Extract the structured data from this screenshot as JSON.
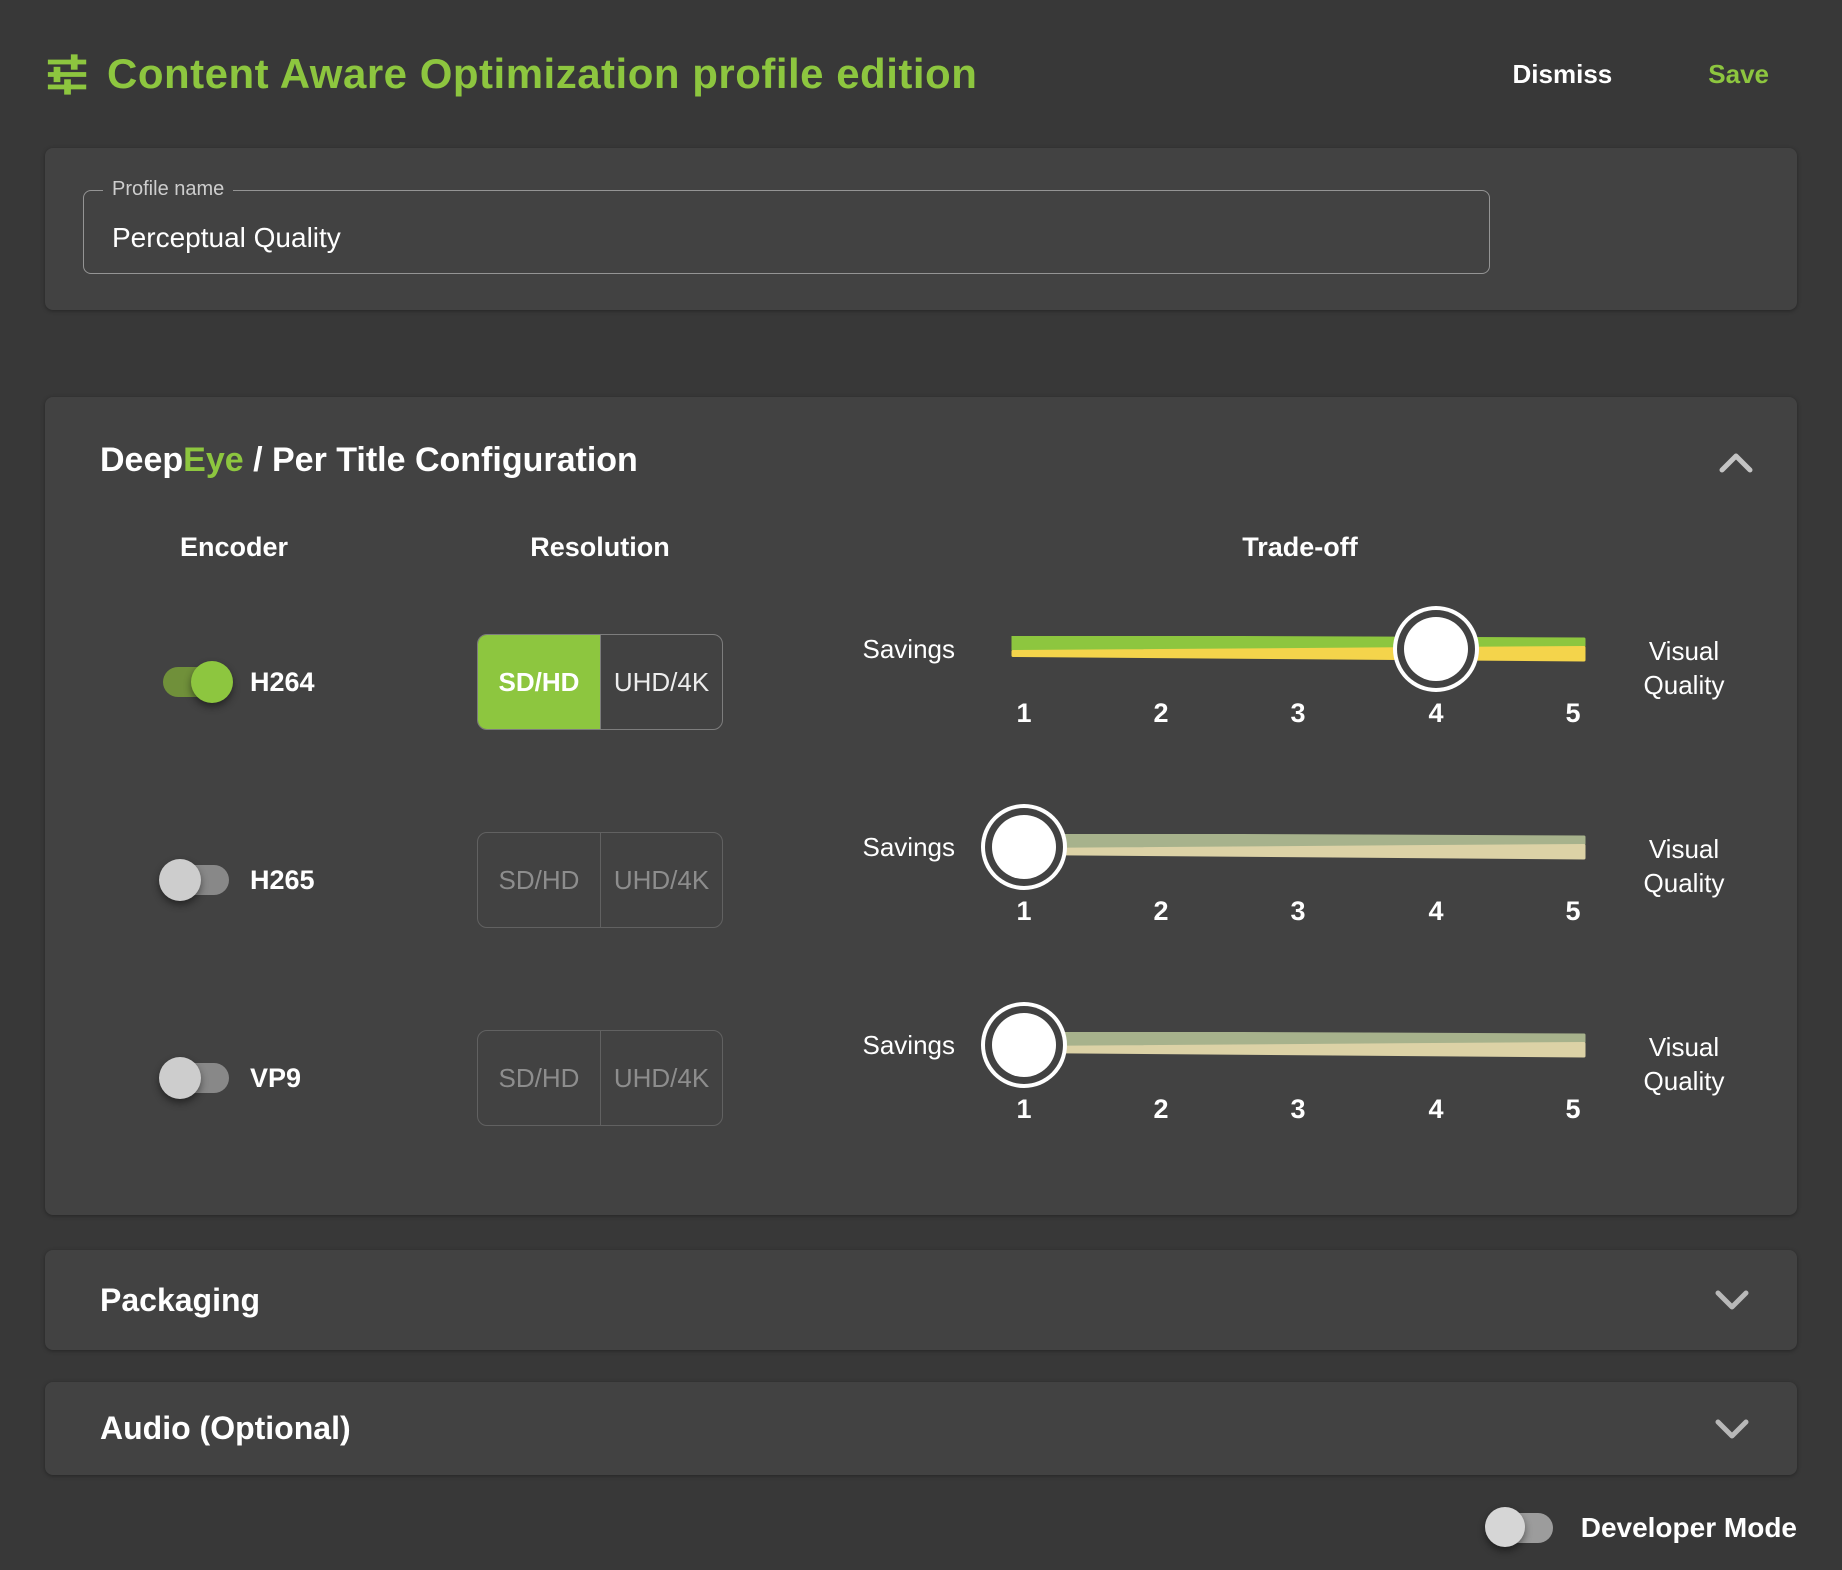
{
  "header": {
    "title": "Content Aware Optimization profile edition",
    "dismiss_label": "Dismiss",
    "save_label": "Save"
  },
  "profile": {
    "label": "Profile name",
    "value": "Perceptual Quality"
  },
  "deepeye": {
    "title": {
      "brand_white": "Deep",
      "brand_green": "Eye",
      "rest": " / Per Title Configuration"
    },
    "columns": {
      "encoder": "Encoder",
      "resolution": "Resolution",
      "tradeoff": "Trade-off"
    },
    "slider": {
      "left_label": "Savings",
      "right_label_line1": "Visual",
      "right_label_line2": "Quality",
      "ticks": [
        "1",
        "2",
        "3",
        "4",
        "5"
      ],
      "scale_min": 1,
      "scale_max": 5
    },
    "rows": [
      {
        "encoder": "H264",
        "enabled": true,
        "resolution_options": [
          "SD/HD",
          "UHD/4K"
        ],
        "resolution_selected": "SD/HD",
        "tradeoff_value": 4
      },
      {
        "encoder": "H265",
        "enabled": false,
        "resolution_options": [
          "SD/HD",
          "UHD/4K"
        ],
        "resolution_selected": null,
        "tradeoff_value": 1
      },
      {
        "encoder": "VP9",
        "enabled": false,
        "resolution_options": [
          "SD/HD",
          "UHD/4K"
        ],
        "resolution_selected": null,
        "tradeoff_value": 1
      }
    ]
  },
  "sections": {
    "packaging_title": "Packaging",
    "audio_title": "Audio (Optional)"
  },
  "footer": {
    "developer_mode_label": "Developer Mode",
    "developer_mode_on": false
  },
  "colors": {
    "accent_green": "#8dc63f",
    "accent_yellow": "#f4d44b",
    "muted_green": "#a7b28c",
    "muted_yellow": "#dcd2a6",
    "page_background": "#383838",
    "card_background": "#424242"
  }
}
